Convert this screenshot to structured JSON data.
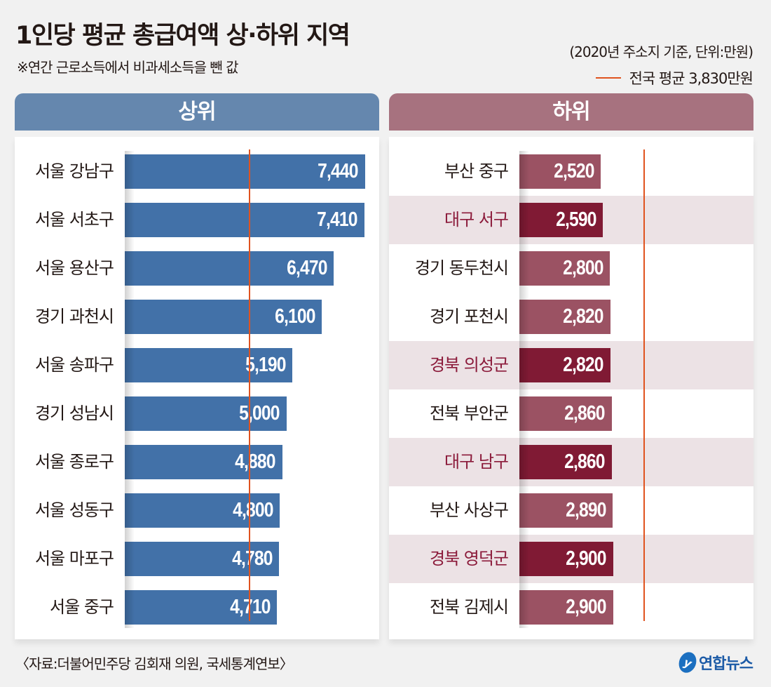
{
  "title": "1인당 평균 총급여액 상·하위 지역",
  "subtitle": "※연간 근로소득에서 비과세소득을 뺀 값",
  "unit_note": "(2020년 주소지 기준, 단위:만원)",
  "legend": {
    "label": "전국 평균 3,830만원",
    "line_color": "#e0531f"
  },
  "source": "〈자료:더불어민주당 김회재 의원, 국세통계연보〉",
  "logo": {
    "text": "연합뉴스",
    "icon": "yonhap-logo-icon"
  },
  "colors": {
    "top_bar": "#4271a8",
    "top_header": "#6587ae",
    "bottom_bar": "#9b5263",
    "bottom_bar_highlight": "#801a34",
    "bottom_header": "#a7727f",
    "highlight_row": "#ece2e5",
    "highlight_text": "#8b1a3a"
  },
  "chart_data": [
    {
      "type": "bar",
      "orientation": "horizontal",
      "title": "상위",
      "unit": "만원",
      "reference_line": {
        "label": "전국 평균",
        "value": 3830
      },
      "categories": [
        "서울 강남구",
        "서울 서초구",
        "서울 용산구",
        "경기 과천시",
        "서울 송파구",
        "경기 성남시",
        "서울 종로구",
        "서울 성동구",
        "서울 마포구",
        "서울 중구"
      ],
      "values": [
        7440,
        7410,
        6470,
        6100,
        5190,
        5000,
        4880,
        4800,
        4780,
        4710
      ],
      "labels": [
        "7,440",
        "7,410",
        "6,470",
        "6,100",
        "5,190",
        "5,000",
        "4,880",
        "4,800",
        "4,780",
        "4,710"
      ],
      "highlight": [
        false,
        false,
        false,
        false,
        false,
        false,
        false,
        false,
        false,
        false
      ]
    },
    {
      "type": "bar",
      "orientation": "horizontal",
      "title": "하위",
      "unit": "만원",
      "reference_line": {
        "label": "전국 평균",
        "value": 3830
      },
      "categories": [
        "부산 중구",
        "대구 서구",
        "경기 동두천시",
        "경기 포천시",
        "경북 의성군",
        "전북 부안군",
        "대구 남구",
        "부산 사상구",
        "경북 영덕군",
        "전북 김제시"
      ],
      "values": [
        2520,
        2590,
        2800,
        2820,
        2820,
        2860,
        2860,
        2890,
        2900,
        2900
      ],
      "labels": [
        "2,520",
        "2,590",
        "2,800",
        "2,820",
        "2,820",
        "2,860",
        "2,860",
        "2,890",
        "2,900",
        "2,900"
      ],
      "highlight": [
        false,
        true,
        false,
        false,
        true,
        false,
        true,
        false,
        true,
        false
      ]
    }
  ]
}
